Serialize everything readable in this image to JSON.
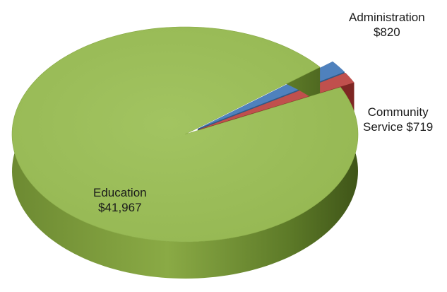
{
  "chart_data": {
    "type": "pie",
    "style": "3d-exploded",
    "title": "",
    "slices": [
      {
        "label": "Education",
        "display_value": "$41,967",
        "value": 41967,
        "color": "#9bbb59",
        "exploded": false
      },
      {
        "label": "Administration",
        "display_value": "$820",
        "value": 820,
        "color": "#4f81bd",
        "exploded": true
      },
      {
        "label": "Community Service",
        "display_value": "$719",
        "value": 719,
        "color": "#c0504d",
        "exploded": true
      }
    ],
    "label_lines": {
      "education": [
        "Education",
        "$41,967"
      ],
      "administration": [
        "Administration",
        "$820"
      ],
      "community": [
        "Community",
        "Service $719"
      ]
    }
  }
}
